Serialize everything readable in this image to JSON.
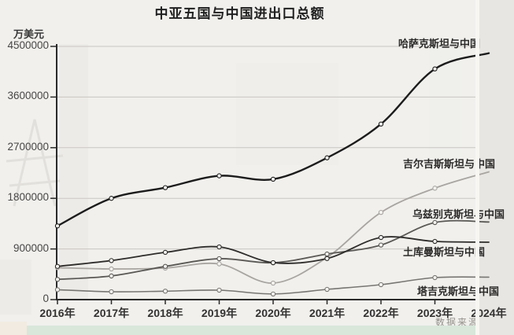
{
  "title": "中亚五国与中国进出口总额",
  "y_axis_unit": "万美元",
  "source_note": "数据来源",
  "chart_data": {
    "type": "line",
    "title": "中亚五国与中国进出口总额",
    "xlabel": "",
    "ylabel": "万美元",
    "x": [
      "2016年",
      "2017年",
      "2018年",
      "2019年",
      "2020年",
      "2021年",
      "2022年",
      "2023年",
      "2024年"
    ],
    "yticks": [
      0,
      900000,
      1800000,
      2700000,
      3600000,
      4500000
    ],
    "ylim": [
      0,
      4500000
    ],
    "grid": true,
    "legend_position": "right-edge-inline-labels",
    "note": "2024 column and right ends of labels are cut off by the screenshot edge",
    "series": [
      {
        "name": "哈萨克斯坦与中国",
        "color": "#1c1c1c",
        "values": [
          1310000,
          1800000,
          1990000,
          2200000,
          2140000,
          2520000,
          3120000,
          4100000,
          4380000
        ]
      },
      {
        "name": "吉尔吉斯斯坦与中国",
        "color": "#a8a5a1",
        "values": [
          567000,
          545000,
          560000,
          635000,
          293000,
          750000,
          1550000,
          1980000,
          2270000
        ]
      },
      {
        "name": "乌兹别克斯坦与中国",
        "color": "#5a5855",
        "values": [
          360000,
          420000,
          590000,
          727000,
          655000,
          810000,
          970000,
          1370000,
          1380000
        ]
      },
      {
        "name": "土库曼斯坦与中国",
        "color": "#2e2c2a",
        "values": [
          590000,
          694000,
          840000,
          936000,
          657000,
          730000,
          1104000,
          1034000,
          1020000
        ]
      },
      {
        "name": "塔吉克斯坦与中国",
        "color": "#787673",
        "values": [
          176000,
          140000,
          150000,
          168000,
          100000,
          182000,
          266000,
          391000,
          400000
        ]
      }
    ]
  }
}
